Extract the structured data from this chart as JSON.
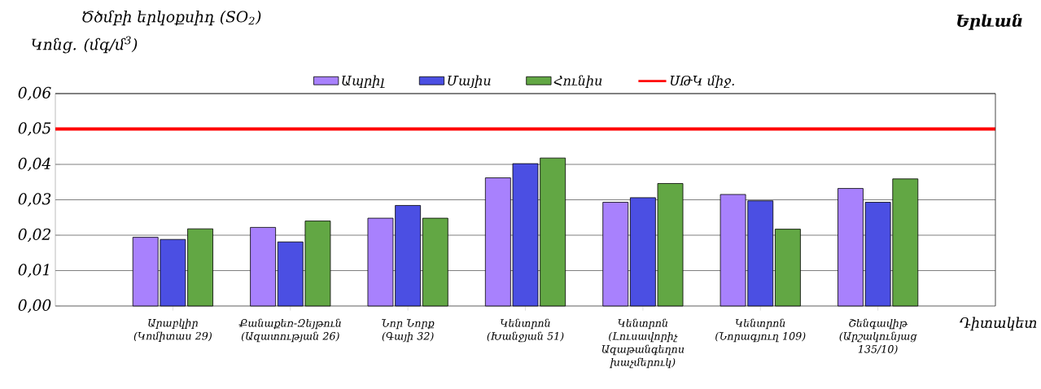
{
  "chart_data": {
    "type": "bar",
    "title": "Ծծմբի երկօքսիդ (SO$_{2}$)",
    "subtitle": "Երևան",
    "ylabel": "Կոնց. (մգ/մ$^{3}$)",
    "xlabel": "Դիտակետ",
    "categories": [
      "Արաբկիր (Կոմիտաս 29)",
      "Քանաքեռ-Զեյթուն (Ազատության 26)",
      "Նոր Նորք (Գայի 32)",
      "Կենտրոն (Խանջյան 51)",
      "Կենտրոն (Լուսավորիչ Ազաթանգեղոս խաչմերուկ)",
      "Կենտրոն (Նորագյուղ 109)",
      "Շենգավիթ (Արշակունյաց 135/10)"
    ],
    "series": [
      {
        "name": "Ապրիլ",
        "color": "#a881fd",
        "values": [
          0.0194,
          0.0222,
          0.0248,
          0.0362,
          0.0293,
          0.0315,
          0.0332
        ]
      },
      {
        "name": "Մայիս",
        "color": "#4b4fe3",
        "values": [
          0.0188,
          0.0181,
          0.0284,
          0.0402,
          0.0306,
          0.0297,
          0.0293
        ]
      },
      {
        "name": "Հունիս",
        "color": "#62a744",
        "values": [
          0.0218,
          0.024,
          0.0248,
          0.0418,
          0.0346,
          0.0217,
          0.0359
        ]
      }
    ],
    "ref_lines": [
      {
        "axis": "y",
        "value": 0.05,
        "label": "ՍԹԿ միջ.",
        "color": "#ff0000"
      }
    ],
    "ylim": [
      0,
      0.06
    ],
    "yticks": [
      {
        "value": 0,
        "label": "0,00"
      },
      {
        "value": 0.01,
        "label": "0,01"
      },
      {
        "value": 0.02,
        "label": "0,02"
      },
      {
        "value": 0.03,
        "label": "0,03"
      },
      {
        "value": 0.04,
        "label": "0,04"
      },
      {
        "value": 0.05,
        "label": "0,05"
      },
      {
        "value": 0.06,
        "label": "0,06"
      }
    ],
    "grid": "y",
    "legend": "top"
  }
}
